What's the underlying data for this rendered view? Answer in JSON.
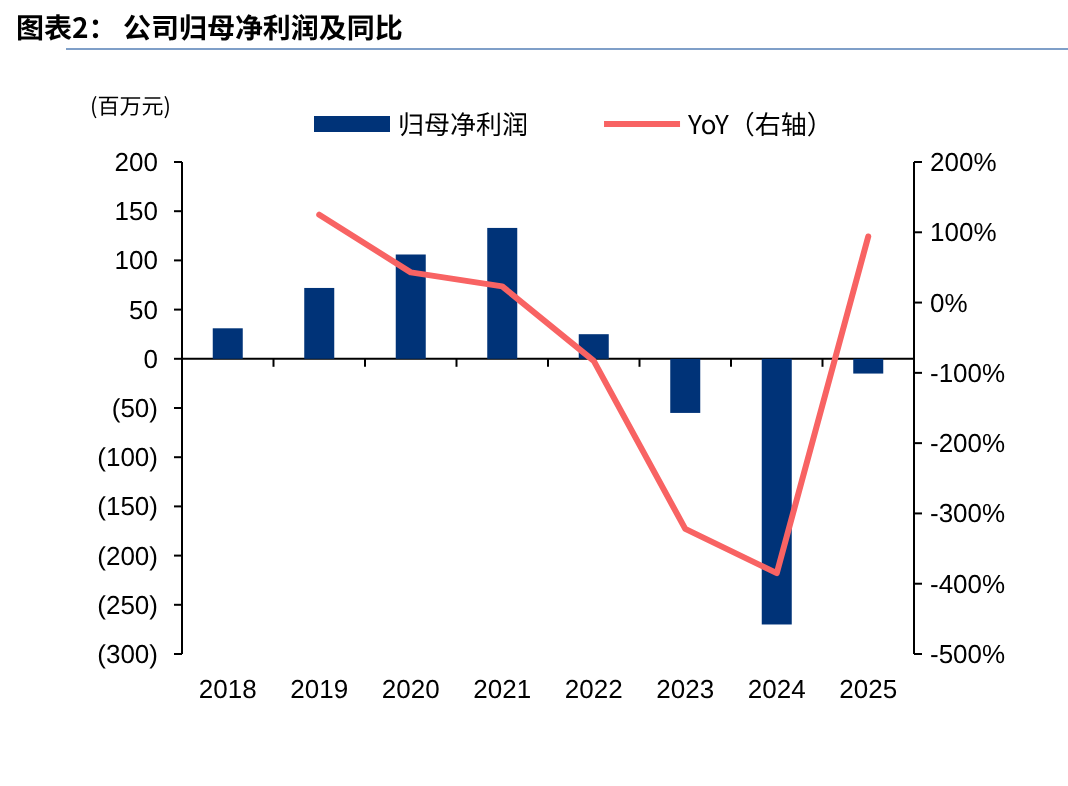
{
  "chart_data": {
    "type": "bar",
    "title": "图表2：  公司归母净利润及同比",
    "ylabel": "(百万元)",
    "categories": [
      "2018",
      "2019",
      "2020",
      "2021",
      "2022",
      "2023",
      "2024",
      "2025"
    ],
    "series": [
      {
        "name": "归母净利润",
        "color": "#003378",
        "values": [
          31,
          72,
          106,
          133,
          25,
          -55,
          -270,
          -15
        ]
      },
      {
        "name": "YoY（右轴）",
        "type": "line",
        "axis": "y2",
        "color": "#f86363",
        "values": [
          null,
          125,
          43,
          23,
          -83,
          -322,
          -385,
          94
        ]
      }
    ],
    "ylim": [
      -300,
      200
    ],
    "yticks": [
      {
        "value": -300,
        "label": "(300)"
      },
      {
        "value": -250,
        "label": "(250)"
      },
      {
        "value": -200,
        "label": "(200)"
      },
      {
        "value": -150,
        "label": "(150)"
      },
      {
        "value": -100,
        "label": "(100)"
      },
      {
        "value": -50,
        "label": "(50)"
      },
      0,
      50,
      100,
      150,
      200
    ],
    "y2lim": [
      -500,
      200
    ],
    "y2ticks": [
      {
        "value": -500,
        "label": "-500%"
      },
      {
        "value": -400,
        "label": "-400%"
      },
      {
        "value": -300,
        "label": "-300%"
      },
      {
        "value": -200,
        "label": "-200%"
      },
      {
        "value": -100,
        "label": "-100%"
      },
      {
        "value": 0,
        "label": "0%"
      },
      {
        "value": 100,
        "label": "100%"
      },
      {
        "value": 200,
        "label": "200%"
      }
    ],
    "legend": "top"
  }
}
